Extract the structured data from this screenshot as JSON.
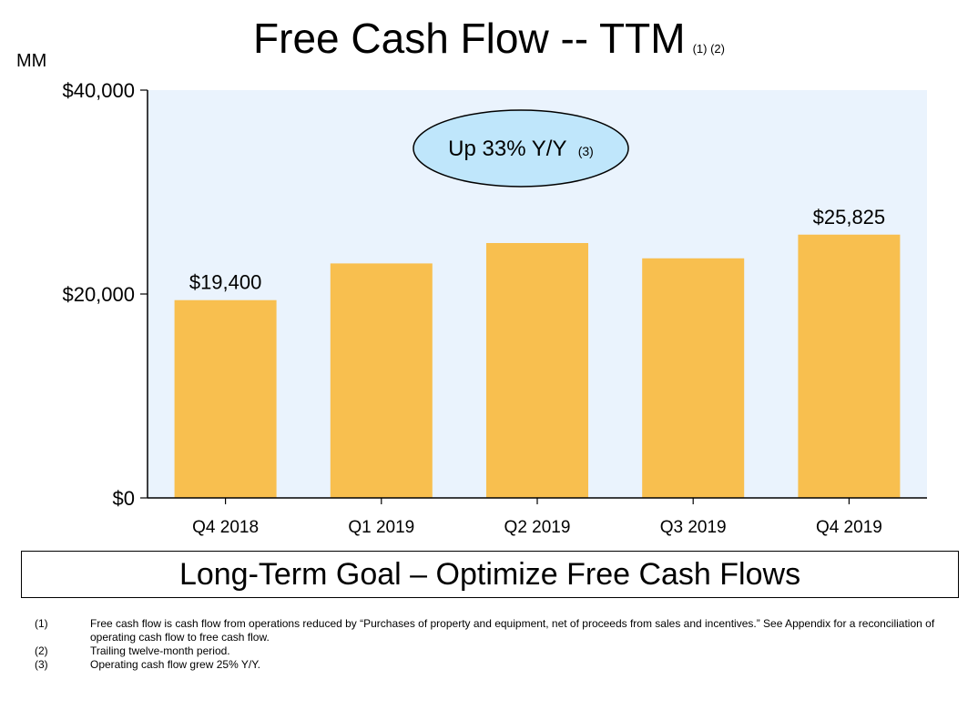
{
  "title": "Free Cash Flow -- TTM",
  "title_footnote_refs": "(1) (2)",
  "unit_label": "MM",
  "callout": {
    "text": "Up 33% Y/Y",
    "ref": "(3)"
  },
  "goal_text": "Long-Term Goal – Optimize Free Cash Flows",
  "footnotes": [
    {
      "num": "(1)",
      "text": "Free cash flow is cash flow from operations reduced by “Purchases of property and equipment, net of proceeds from sales and incentives.” See Appendix for a reconciliation of operating cash flow to free cash flow."
    },
    {
      "num": "(2)",
      "text": "Trailing twelve-month period."
    },
    {
      "num": "(3)",
      "text": "Operating cash flow grew 25% Y/Y."
    }
  ],
  "colors": {
    "bar": "#f8bf4f",
    "plot_bg": "#eaf3fd",
    "callout_fill": "#bfe6fb"
  },
  "chart_data": {
    "type": "bar",
    "categories": [
      "Q4 2018",
      "Q1 2019",
      "Q2 2019",
      "Q3 2019",
      "Q4 2019"
    ],
    "values": [
      19400,
      23000,
      25000,
      23500,
      25825
    ],
    "data_labels": [
      "$19,400",
      "",
      "",
      "",
      "$25,825"
    ],
    "ylim": [
      0,
      40000
    ],
    "yticks": [
      0,
      20000,
      40000
    ],
    "ytick_labels": [
      "$0",
      "$20,000",
      "$40,000"
    ],
    "grid": false
  }
}
